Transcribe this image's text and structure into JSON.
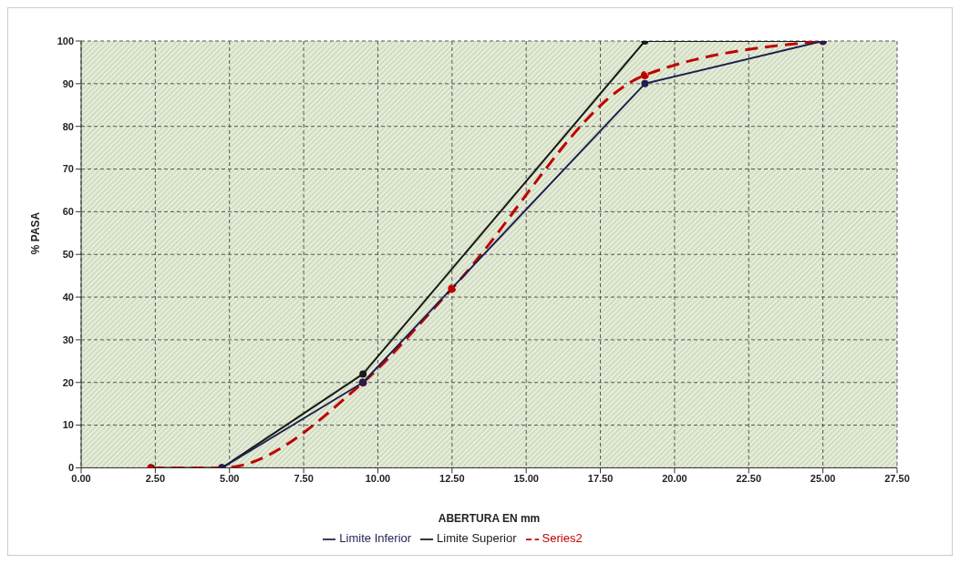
{
  "chart_data": {
    "type": "line",
    "xlabel": "ABERTURA EN mm",
    "ylabel": "%   PASA",
    "xlim": [
      0,
      27.5
    ],
    "xticks": [
      {
        "value": 0,
        "label": "0.00"
      },
      {
        "value": 2.5,
        "label": "2.50"
      },
      {
        "value": 5,
        "label": "5.00"
      },
      {
        "value": 7.5,
        "label": "7.50"
      },
      {
        "value": 10,
        "label": "10.00"
      },
      {
        "value": 12.5,
        "label": "12.50"
      },
      {
        "value": 15,
        "label": "15.00"
      },
      {
        "value": 17.5,
        "label": "17.50"
      },
      {
        "value": 20,
        "label": "20.00"
      },
      {
        "value": 22.5,
        "label": "22.50"
      },
      {
        "value": 25,
        "label": "25.00"
      },
      {
        "value": 27.5,
        "label": "27.50"
      }
    ],
    "ylim": [
      0,
      100
    ],
    "yticks": [
      0,
      10,
      20,
      30,
      40,
      50,
      60,
      70,
      80,
      90,
      100
    ],
    "grid": true,
    "legend": "bottom",
    "marker": "circle",
    "series": [
      {
        "name": "Limite Superior",
        "color": "#1a1a1a",
        "line_style": "solid",
        "x": [
          2.36,
          4.75,
          9.5,
          19,
          25
        ],
        "values": [
          0,
          0,
          22,
          100,
          100
        ]
      },
      {
        "name": "Series2",
        "color": "#c00000",
        "line_style": "dashed",
        "x": [
          2.36,
          4.75,
          9.5,
          12.5,
          19,
          25
        ],
        "values": [
          0,
          0,
          20,
          42,
          92,
          100
        ]
      },
      {
        "name": "Limite Inferior",
        "color": "#1f2050",
        "line_style": "solid",
        "x": [
          4.75,
          9.5,
          19,
          25
        ],
        "values": [
          0,
          20,
          90,
          100
        ]
      }
    ]
  }
}
